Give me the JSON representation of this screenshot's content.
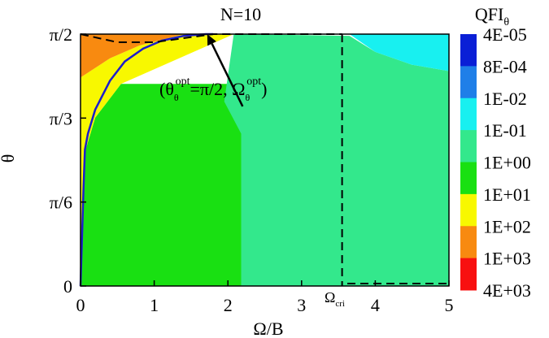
{
  "chart_data": {
    "type": "heatmap",
    "title": "N=10",
    "xlabel": "Ω/B",
    "ylabel": "θ",
    "xlim": [
      0,
      5
    ],
    "ylim": [
      0,
      1.5708
    ],
    "x_ticks": [
      {
        "value": 0,
        "label": "0"
      },
      {
        "value": 1,
        "label": "1"
      },
      {
        "value": 2,
        "label": "2"
      },
      {
        "value": 3,
        "label": "3"
      },
      {
        "value": 4,
        "label": "4"
      },
      {
        "value": 5,
        "label": "5"
      }
    ],
    "y_ticks": [
      {
        "value": 0,
        "label": "0"
      },
      {
        "value": 0.5236,
        "label": "π/6"
      },
      {
        "value": 1.0472,
        "label": "π/3"
      },
      {
        "value": 1.5708,
        "label": "π/2"
      }
    ],
    "colorbar": {
      "title": "QFI",
      "title_subscript": "θ",
      "levels": [
        {
          "label": "4E-05",
          "color": "#0a1fd6"
        },
        {
          "label": "8E-04",
          "color": "#1f7fe8"
        },
        {
          "label": "1E-02",
          "color": "#18f0f0"
        },
        {
          "label": "1E-01",
          "color": "#33e88c"
        },
        {
          "label": "1E+00",
          "color": "#19e012"
        },
        {
          "label": "1E+01",
          "color": "#f8f800"
        },
        {
          "label": "1E+02",
          "color": "#f88a10"
        },
        {
          "label": "1E+03",
          "color": "#f81010"
        },
        {
          "label": "4E+03",
          "color": "#ff0000"
        }
      ]
    },
    "regions": [
      {
        "color": "#19e012",
        "polygon": [
          [
            0,
            0
          ],
          [
            2.18,
            0
          ],
          [
            2.18,
            1.26
          ],
          [
            0.55,
            1.26
          ],
          [
            0.2,
            1.05
          ],
          [
            0.05,
            0.82
          ],
          [
            0.02,
            0.3
          ],
          [
            0,
            0
          ]
        ]
      },
      {
        "color": "#33e88c",
        "polygon": [
          [
            2.18,
            0
          ],
          [
            5,
            0
          ],
          [
            5,
            1.34
          ],
          [
            4.5,
            1.38
          ],
          [
            4.0,
            1.46
          ],
          [
            3.65,
            1.56
          ],
          [
            2.08,
            1.5708
          ],
          [
            1.95,
            1.15
          ],
          [
            2.18,
            0.95
          ]
        ]
      },
      {
        "color": "#18f0f0",
        "polygon": [
          [
            3.65,
            1.5708
          ],
          [
            5,
            1.5708
          ],
          [
            5,
            1.34
          ],
          [
            4.5,
            1.38
          ],
          [
            4.0,
            1.46
          ]
        ]
      },
      {
        "color": "#f8f800",
        "polygon": [
          [
            0,
            0
          ],
          [
            0.02,
            0.3
          ],
          [
            0.05,
            0.82
          ],
          [
            0.2,
            1.05
          ],
          [
            0.55,
            1.26
          ],
          [
            2.08,
            1.5708
          ],
          [
            1.4,
            1.5708
          ],
          [
            0.8,
            1.5
          ],
          [
            0.4,
            1.42
          ],
          [
            0,
            1.3
          ]
        ]
      },
      {
        "color": "#f88a10",
        "polygon": [
          [
            0,
            1.3
          ],
          [
            0.4,
            1.42
          ],
          [
            0.8,
            1.5
          ],
          [
            1.4,
            1.5708
          ],
          [
            0,
            1.5708
          ]
        ]
      }
    ],
    "series": [
      {
        "style": "solid",
        "color": "#1c1ccc",
        "x": [
          0,
          0.04,
          0.06,
          0.1,
          0.2,
          0.4,
          0.6,
          0.85,
          1.1,
          1.4,
          1.7,
          1.8
        ],
        "y": [
          0,
          0.6,
          0.85,
          0.95,
          1.1,
          1.28,
          1.4,
          1.48,
          1.53,
          1.56,
          1.5708,
          1.5708
        ]
      },
      {
        "style": "dashed",
        "color": "#000000",
        "x": [
          0,
          0.5,
          1.0,
          1.8,
          3.55
        ],
        "y": [
          1.5708,
          1.52,
          1.52,
          1.5708,
          1.5708
        ]
      },
      {
        "style": "dashed",
        "color": "#000000",
        "x": [
          3.55,
          3.55
        ],
        "y": [
          1.5708,
          0
        ]
      },
      {
        "style": "dashed",
        "color": "#000000",
        "x": [
          3.62,
          5.0
        ],
        "y": [
          0.015,
          0.015
        ]
      }
    ],
    "annotations": {
      "theta_opt_label": "(θ",
      "theta_sub": "θ",
      "theta_sup": "opt",
      "equals_label": "=π/2, Ω",
      "omega_sub": "θ",
      "omega_sup": "opt",
      "close_paren": ")",
      "arrow_from": [
        2.2,
        1.12
      ],
      "arrow_to": [
        1.72,
        1.5708
      ],
      "omega_cri_main": "Ω",
      "omega_cri_sub": "cri"
    }
  }
}
